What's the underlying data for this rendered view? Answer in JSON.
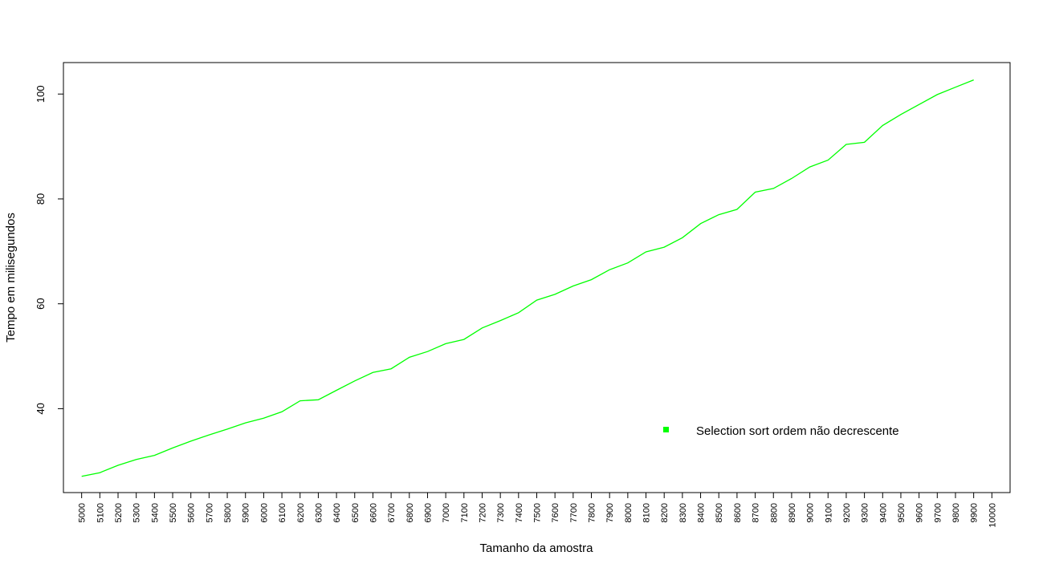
{
  "chart_data": {
    "type": "line",
    "xlabel": "Tamanho da amostra",
    "ylabel": "Tempo em milisegundos",
    "ylim": [
      24,
      106
    ],
    "yticks": [
      40,
      60,
      80,
      100
    ],
    "xticks": [
      5000,
      5100,
      5200,
      5300,
      5400,
      5500,
      5600,
      5700,
      5800,
      5900,
      6000,
      6100,
      6200,
      6300,
      6400,
      6500,
      6600,
      6700,
      6800,
      6900,
      7000,
      7100,
      7200,
      7300,
      7400,
      7500,
      7600,
      7700,
      7800,
      7900,
      8000,
      8100,
      8200,
      8300,
      8400,
      8500,
      8600,
      8700,
      8800,
      8900,
      9000,
      9100,
      9200,
      9300,
      9400,
      9500,
      9600,
      9700,
      9800,
      9900,
      10000
    ],
    "xlim": [
      4900,
      10100
    ],
    "grid": false,
    "legend_position": "bottom-right",
    "series": [
      {
        "name": "Selection sort ordem não decrescente",
        "color": "#00ff00",
        "x": [
          5000,
          5100,
          5200,
          5300,
          5400,
          5500,
          5600,
          5700,
          5800,
          5900,
          6000,
          6100,
          6200,
          6300,
          6400,
          6500,
          6600,
          6700,
          6800,
          6900,
          7000,
          7100,
          7200,
          7300,
          7400,
          7500,
          7600,
          7700,
          7800,
          7900,
          8000,
          8100,
          8200,
          8300,
          8400,
          8500,
          8600,
          8700,
          8800,
          8900,
          9000,
          9100,
          9200,
          9300,
          9400,
          9500,
          9600,
          9700,
          9800,
          9900
        ],
        "values": [
          27.1,
          27.8,
          29.2,
          30.3,
          31.1,
          32.5,
          33.8,
          35.0,
          36.1,
          37.3,
          38.2,
          39.4,
          41.5,
          41.7,
          43.5,
          45.3,
          46.9,
          47.6,
          49.8,
          50.9,
          52.4,
          53.2,
          55.4,
          56.8,
          58.3,
          60.7,
          61.8,
          63.4,
          64.6,
          66.5,
          67.8,
          69.9,
          70.8,
          72.6,
          75.3,
          77.0,
          78.0,
          81.3,
          82.0,
          83.9,
          86.1,
          87.4,
          90.4,
          90.8,
          94.0,
          96.1,
          98.0,
          99.9,
          101.3,
          102.7
        ]
      }
    ]
  }
}
